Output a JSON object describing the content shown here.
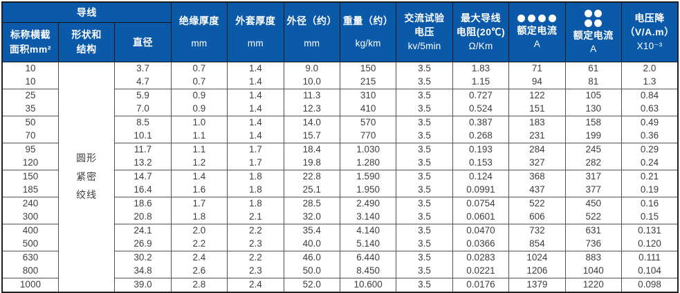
{
  "colors": {
    "header_blue": "#0b59a9",
    "header_text": "#ffffff",
    "body_text": "#3d3d3d",
    "grid_line": "#4f4f4f"
  },
  "table": {
    "header": {
      "conductor_group": "导线",
      "area": [
        "标称横截",
        "面积mm²"
      ],
      "shape": [
        "形状和",
        "结构"
      ],
      "diameter": "直径",
      "insulation": [
        "绝缘厚度",
        "mm"
      ],
      "sheath": [
        "外套厚度",
        "mm"
      ],
      "outer_diameter": [
        "外径（约）",
        "mm"
      ],
      "weight": [
        "重量（约）",
        "kg/km"
      ],
      "ac_voltage": [
        "交流试验",
        "电压",
        "kv/5min"
      ],
      "resistance": [
        "最大导线",
        "电阻(20℃)",
        "Ω/Km"
      ],
      "current4": [
        "额定电流",
        "A"
      ],
      "current2x2": [
        "额定电流",
        "A"
      ],
      "voltage_drop": [
        "电压降",
        "（V/A.m）",
        "X10⁻³"
      ]
    },
    "icons": {
      "current4": "four-dots-row-icon",
      "current2x2": "four-dots-grid-icon"
    },
    "shape_value": [
      "圆形",
      "紧密",
      "绞线"
    ],
    "column_keys": [
      "area",
      "diameter",
      "insulation-thickness",
      "sheath-thickness",
      "outer-diameter",
      "weight",
      "ac-test-voltage",
      "max-resistance",
      "rated-current-4core",
      "rated-current-2x2",
      "voltage-drop"
    ],
    "group_starts": [
      2,
      4,
      6,
      8,
      10,
      12,
      14,
      16
    ],
    "rows": [
      [
        "10",
        "3.7",
        "0.7",
        "1.4",
        "9.0",
        "150",
        "3.5",
        "1.83",
        "71",
        "61",
        "2.0"
      ],
      [
        "10",
        "4.7",
        "0.7",
        "1.4",
        "10.0",
        "215",
        "3.5",
        "1.15",
        "94",
        "81",
        "1.3"
      ],
      [
        "25",
        "5.9",
        "0.9",
        "1.4",
        "11.3",
        "310",
        "3.5",
        "0.727",
        "122",
        "105",
        "0.84"
      ],
      [
        "35",
        "7.0",
        "0.9",
        "1.4",
        "12.3",
        "410",
        "3.5",
        "0.524",
        "151",
        "130",
        "0.63"
      ],
      [
        "50",
        "8.5",
        "1.0",
        "1.4",
        "14.0",
        "570",
        "3.5",
        "0.387",
        "183",
        "158",
        "0.49"
      ],
      [
        "70",
        "10.1",
        "1.1",
        "1.4",
        "15.7",
        "770",
        "3.5",
        "0.268",
        "231",
        "199",
        "0.36"
      ],
      [
        "95",
        "11.7",
        "1.1",
        "1.7",
        "18.4",
        "1.030",
        "3.5",
        "0.193",
        "284",
        "245",
        "0.29"
      ],
      [
        "120",
        "13.2",
        "1.2",
        "1.7",
        "19.8",
        "1.280",
        "3.5",
        "0.153",
        "327",
        "282",
        "0.24"
      ],
      [
        "150",
        "14.7",
        "1.4",
        "1.8",
        "22.8",
        "1.590",
        "3.5",
        "0.124",
        "368",
        "317",
        "0.21"
      ],
      [
        "185",
        "16.4",
        "1.6",
        "1.8",
        "25.1",
        "1.950",
        "3.5",
        "0.0991",
        "437",
        "377",
        "0.19"
      ],
      [
        "240",
        "18.6",
        "1.7",
        "1.8",
        "28.5",
        "2.490",
        "3.5",
        "0.0754",
        "522",
        "450",
        "0.16"
      ],
      [
        "300",
        "20.8",
        "1.8",
        "2.1",
        "32.0",
        "3.140",
        "3.5",
        "0.0601",
        "606",
        "522",
        "0.15"
      ],
      [
        "400",
        "24.1",
        "2.0",
        "2.2",
        "35.4",
        "4.140",
        "3.5",
        "0.0470",
        "732",
        "631",
        "0.131"
      ],
      [
        "500",
        "26.9",
        "2.2",
        "2.3",
        "40.0",
        "5.140",
        "3.5",
        "0.0366",
        "854",
        "736",
        "0.120"
      ],
      [
        "630",
        "30.2",
        "2.4",
        "2.2",
        "46.0",
        "6.440",
        "3.5",
        "0.0283",
        "1024",
        "883",
        "0.111"
      ],
      [
        "800",
        "34.8",
        "2.6",
        "2.3",
        "50.0",
        "8.450",
        "3.5",
        "0.0221",
        "1206",
        "1040",
        "0.104"
      ],
      [
        "1000",
        "39.0",
        "2.8",
        "2.4",
        "52.0",
        "10.600",
        "3.5",
        "0.0176",
        "1379",
        "1220",
        "0.098"
      ]
    ]
  }
}
